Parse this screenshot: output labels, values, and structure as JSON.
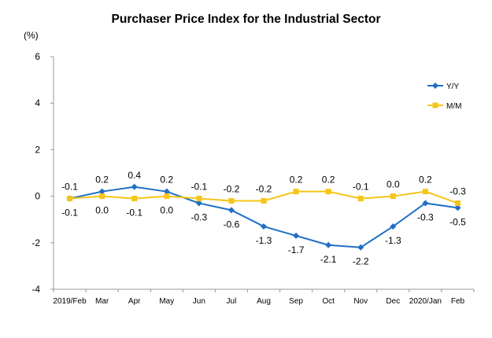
{
  "chart_data": {
    "type": "line",
    "title": "Purchaser Price Index for the Industrial  Sector",
    "unit": "(%)",
    "categories": [
      "2019/Feb",
      "Mar",
      "Apr",
      "May",
      "Jun",
      "Jul",
      "Aug",
      "Sep",
      "Oct",
      "Nov",
      "Dec",
      "2020/Jan",
      "Feb"
    ],
    "ylim": [
      -4,
      6
    ],
    "yticks": [
      "6",
      "4",
      "2",
      "0",
      "-2",
      "-4"
    ],
    "grid": false,
    "legend": "right",
    "series": [
      {
        "name": "Y/Y",
        "color": "#1f6fc5",
        "marker": "diamond",
        "values": [
          -0.1,
          0.2,
          0.4,
          0.2,
          -0.3,
          -0.6,
          -1.3,
          -1.7,
          -2.1,
          -2.2,
          -1.3,
          -0.3,
          -0.5
        ],
        "labels": [
          "-0.1",
          "0.2",
          "0.4",
          "0.2",
          "-0.3",
          "-0.6",
          "-1.3",
          "-1.7",
          "-2.1",
          "-2.2",
          "-1.3",
          "-0.3",
          "-0.5"
        ]
      },
      {
        "name": "M/M",
        "color": "#f5c518",
        "marker": "square",
        "values": [
          -0.1,
          0.0,
          -0.1,
          0.0,
          -0.1,
          -0.2,
          -0.2,
          0.2,
          0.2,
          -0.1,
          0.0,
          0.2,
          -0.3
        ],
        "labels": [
          "-0.1",
          "0.0",
          "-0.1",
          "0.0",
          "-0.1",
          "-0.2",
          "-0.2",
          "0.2",
          "0.2",
          "-0.1",
          "0.0",
          "0.2",
          "-0.3"
        ]
      }
    ]
  }
}
